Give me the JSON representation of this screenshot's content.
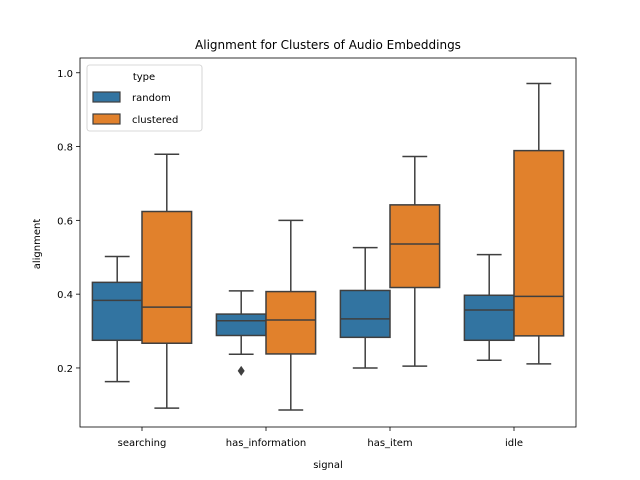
{
  "chart_data": {
    "type": "box",
    "title": "Alignment for Clusters of Audio Embeddings",
    "xlabel": "signal",
    "ylabel": "alignment",
    "ylim": [
      0.04,
      1.04
    ],
    "yticks": [
      0.2,
      0.4,
      0.6,
      0.8,
      1.0
    ],
    "ytick_labels": [
      "0.2",
      "0.4",
      "0.6",
      "0.8",
      "1.0"
    ],
    "categories": [
      "searching",
      "has_information",
      "has_item",
      "idle"
    ],
    "legend": {
      "title": "type",
      "position": "top-left"
    },
    "series": [
      {
        "name": "random",
        "color": "#3274a1",
        "boxes": [
          {
            "whisker_low": 0.163,
            "q1": 0.275,
            "median": 0.383,
            "q3": 0.432,
            "whisker_high": 0.502,
            "outliers": []
          },
          {
            "whisker_low": 0.237,
            "q1": 0.288,
            "median": 0.328,
            "q3": 0.346,
            "whisker_high": 0.409,
            "outliers": [
              0.192
            ]
          },
          {
            "whisker_low": 0.2,
            "q1": 0.283,
            "median": 0.333,
            "q3": 0.41,
            "whisker_high": 0.526,
            "outliers": []
          },
          {
            "whisker_low": 0.221,
            "q1": 0.275,
            "median": 0.357,
            "q3": 0.397,
            "whisker_high": 0.507,
            "outliers": []
          }
        ]
      },
      {
        "name": "clustered",
        "color": "#e1812c",
        "boxes": [
          {
            "whisker_low": 0.091,
            "q1": 0.267,
            "median": 0.365,
            "q3": 0.624,
            "whisker_high": 0.779,
            "outliers": []
          },
          {
            "whisker_low": 0.086,
            "q1": 0.238,
            "median": 0.33,
            "q3": 0.407,
            "whisker_high": 0.6,
            "outliers": []
          },
          {
            "whisker_low": 0.205,
            "q1": 0.418,
            "median": 0.536,
            "q3": 0.642,
            "whisker_high": 0.773,
            "outliers": []
          },
          {
            "whisker_low": 0.211,
            "q1": 0.287,
            "median": 0.394,
            "q3": 0.789,
            "whisker_high": 0.971,
            "outliers": []
          }
        ]
      }
    ]
  }
}
